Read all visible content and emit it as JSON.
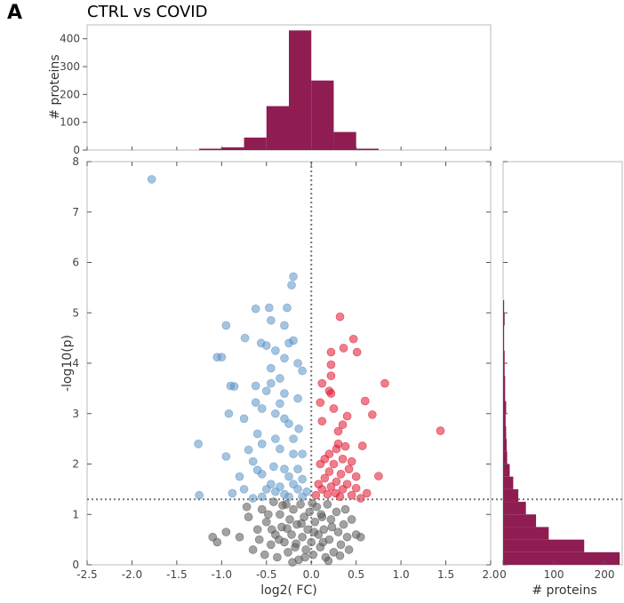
{
  "panel_label": "A",
  "colors": {
    "histogram": "#8f1d52",
    "down": "#5b93c4",
    "up": "#e0142c",
    "ns": "#555555",
    "threshold_line": "#777777",
    "axes": "#bbbbbb"
  },
  "chart_data": [
    {
      "type": "bar",
      "role": "top-marginal-histogram",
      "title": "CTRL vs COVID",
      "xlabel": "",
      "ylabel": "# proteins",
      "xlim": [
        -2.5,
        2.0
      ],
      "ylim": [
        0,
        450
      ],
      "yticks": [
        0,
        100,
        200,
        300,
        400
      ],
      "bin_edges": [
        -1.25,
        -1.0,
        -0.75,
        -0.5,
        -0.25,
        0.0,
        0.25,
        0.5,
        0.75
      ],
      "values": [
        5,
        10,
        45,
        158,
        430,
        250,
        65,
        5
      ]
    },
    {
      "type": "scatter",
      "role": "volcano-plot",
      "xlabel": "log2( FC)",
      "ylabel": "-log10(p)",
      "xlim": [
        -2.5,
        2.0
      ],
      "ylim": [
        0,
        8
      ],
      "xticks": [
        "-2.5",
        "-2.0",
        "-1.5",
        "-1.0",
        "-0.5",
        "0.0",
        "0.5",
        "1.0",
        "1.5",
        "2.0"
      ],
      "yticks": [
        "0",
        "1",
        "2",
        "3",
        "4",
        "5",
        "6",
        "7",
        "8"
      ],
      "thresholds": {
        "x": 0.0,
        "y": 1.3
      },
      "series": [
        {
          "group": "down",
          "points": [
            [
              -1.78,
              7.65
            ],
            [
              -0.2,
              5.72
            ],
            [
              -0.22,
              5.55
            ],
            [
              -0.47,
              5.1
            ],
            [
              -0.62,
              5.08
            ],
            [
              -0.27,
              5.1
            ],
            [
              -0.45,
              4.85
            ],
            [
              -0.95,
              4.75
            ],
            [
              -0.3,
              4.75
            ],
            [
              -0.74,
              4.5
            ],
            [
              -0.56,
              4.4
            ],
            [
              -0.5,
              4.35
            ],
            [
              -0.2,
              4.45
            ],
            [
              -0.4,
              4.25
            ],
            [
              -1.05,
              4.12
            ],
            [
              -1.0,
              4.12
            ],
            [
              -0.25,
              4.4
            ],
            [
              -0.3,
              4.1
            ],
            [
              -0.15,
              4.0
            ],
            [
              -0.45,
              3.9
            ],
            [
              -0.35,
              3.7
            ],
            [
              -0.1,
              3.85
            ],
            [
              -0.9,
              3.55
            ],
            [
              -0.86,
              3.54
            ],
            [
              -0.62,
              3.55
            ],
            [
              -0.45,
              3.6
            ],
            [
              -0.5,
              3.45
            ],
            [
              -0.3,
              3.4
            ],
            [
              -0.15,
              3.3
            ],
            [
              -0.35,
              3.2
            ],
            [
              -0.62,
              3.22
            ],
            [
              -0.55,
              3.1
            ],
            [
              -0.92,
              3.0
            ],
            [
              -0.4,
              3.0
            ],
            [
              -0.3,
              2.9
            ],
            [
              -0.25,
              2.8
            ],
            [
              -0.14,
              2.7
            ],
            [
              -0.75,
              2.9
            ],
            [
              -0.6,
              2.6
            ],
            [
              -0.4,
              2.5
            ],
            [
              -0.2,
              2.5
            ],
            [
              -0.55,
              2.4
            ],
            [
              -1.26,
              2.4
            ],
            [
              -0.7,
              2.28
            ],
            [
              -0.35,
              2.3
            ],
            [
              -0.1,
              2.2
            ],
            [
              -0.95,
              2.15
            ],
            [
              -0.2,
              2.2
            ],
            [
              -0.65,
              2.05
            ],
            [
              -0.42,
              1.95
            ],
            [
              -0.3,
              1.9
            ],
            [
              -0.15,
              1.9
            ],
            [
              -0.55,
              1.8
            ],
            [
              -0.6,
              1.88
            ],
            [
              -0.8,
              1.75
            ],
            [
              -0.25,
              1.75
            ],
            [
              -0.1,
              1.7
            ],
            [
              -0.45,
              1.6
            ],
            [
              -0.35,
              1.55
            ],
            [
              -0.2,
              1.6
            ],
            [
              -0.5,
              1.5
            ],
            [
              -0.4,
              1.45
            ],
            [
              -0.3,
              1.4
            ],
            [
              -0.15,
              1.5
            ],
            [
              -0.05,
              1.45
            ],
            [
              -0.75,
              1.5
            ],
            [
              -0.88,
              1.42
            ],
            [
              -1.25,
              1.38
            ],
            [
              -0.55,
              1.35
            ],
            [
              -0.25,
              1.35
            ],
            [
              -0.1,
              1.35
            ],
            [
              -0.65,
              1.32
            ]
          ]
        },
        {
          "group": "up",
          "points": [
            [
              0.32,
              4.92
            ],
            [
              0.47,
              4.48
            ],
            [
              0.36,
              4.3
            ],
            [
              0.51,
              4.22
            ],
            [
              0.22,
              4.22
            ],
            [
              0.22,
              3.97
            ],
            [
              0.22,
              3.75
            ],
            [
              0.12,
              3.6
            ],
            [
              0.82,
              3.6
            ],
            [
              0.2,
              3.45
            ],
            [
              0.22,
              3.4
            ],
            [
              0.6,
              3.25
            ],
            [
              0.1,
              3.22
            ],
            [
              0.25,
              3.1
            ],
            [
              0.68,
              2.98
            ],
            [
              0.4,
              2.95
            ],
            [
              0.35,
              2.78
            ],
            [
              0.3,
              2.65
            ],
            [
              1.44,
              2.66
            ],
            [
              0.12,
              2.85
            ],
            [
              0.3,
              2.4
            ],
            [
              0.57,
              2.36
            ],
            [
              0.38,
              2.35
            ],
            [
              0.28,
              2.3
            ],
            [
              0.2,
              2.2
            ],
            [
              0.15,
              2.1
            ],
            [
              0.35,
              2.1
            ],
            [
              0.45,
              2.05
            ],
            [
              0.25,
              2.0
            ],
            [
              0.1,
              2.0
            ],
            [
              0.42,
              1.9
            ],
            [
              0.2,
              1.85
            ],
            [
              0.33,
              1.8
            ],
            [
              0.5,
              1.75
            ],
            [
              0.75,
              1.76
            ],
            [
              0.15,
              1.72
            ],
            [
              0.28,
              1.65
            ],
            [
              0.4,
              1.6
            ],
            [
              0.08,
              1.6
            ],
            [
              0.22,
              1.55
            ],
            [
              0.35,
              1.5
            ],
            [
              0.5,
              1.52
            ],
            [
              0.12,
              1.5
            ],
            [
              0.62,
              1.42
            ],
            [
              0.27,
              1.42
            ],
            [
              0.18,
              1.4
            ],
            [
              0.45,
              1.38
            ],
            [
              0.05,
              1.38
            ],
            [
              0.32,
              1.35
            ],
            [
              0.55,
              1.32
            ]
          ]
        },
        {
          "group": "ns",
          "points": [
            [
              -1.1,
              0.55
            ],
            [
              -1.05,
              0.45
            ],
            [
              -0.95,
              0.65
            ],
            [
              -0.7,
              0.95
            ],
            [
              -0.8,
              0.55
            ],
            [
              -0.72,
              1.15
            ],
            [
              -0.65,
              0.3
            ],
            [
              -0.6,
              0.7
            ],
            [
              -0.55,
              1.1
            ],
            [
              -0.5,
              0.85
            ],
            [
              -0.45,
              0.4
            ],
            [
              -0.42,
              1.25
            ],
            [
              -0.4,
              0.6
            ],
            [
              -0.38,
              0.15
            ],
            [
              -0.35,
              1.0
            ],
            [
              -0.33,
              0.75
            ],
            [
              -0.3,
              0.45
            ],
            [
              -0.28,
              1.2
            ],
            [
              -0.26,
              0.25
            ],
            [
              -0.24,
              0.9
            ],
            [
              -0.22,
              0.6
            ],
            [
              -0.2,
              1.1
            ],
            [
              -0.18,
              0.35
            ],
            [
              -0.16,
              0.8
            ],
            [
              -0.14,
              0.1
            ],
            [
              -0.12,
              1.2
            ],
            [
              -0.1,
              0.55
            ],
            [
              -0.08,
              0.95
            ],
            [
              -0.06,
              0.3
            ],
            [
              -0.04,
              0.7
            ],
            [
              -0.02,
              1.05
            ],
            [
              0.0,
              0.45
            ],
            [
              0.02,
              0.2
            ],
            [
              0.04,
              0.85
            ],
            [
              0.06,
              1.15
            ],
            [
              0.08,
              0.6
            ],
            [
              0.1,
              0.35
            ],
            [
              0.12,
              0.95
            ],
            [
              0.14,
              0.7
            ],
            [
              0.16,
              0.15
            ],
            [
              0.18,
              1.2
            ],
            [
              0.2,
              0.5
            ],
            [
              0.22,
              0.9
            ],
            [
              0.25,
              0.25
            ],
            [
              0.28,
              1.05
            ],
            [
              0.3,
              0.65
            ],
            [
              0.33,
              0.4
            ],
            [
              0.36,
              0.8
            ],
            [
              0.4,
              0.55
            ],
            [
              0.45,
              0.9
            ],
            [
              0.5,
              0.6
            ],
            [
              0.55,
              0.55
            ],
            [
              0.42,
              0.3
            ],
            [
              -0.52,
              0.2
            ],
            [
              -0.58,
              0.5
            ],
            [
              -0.48,
              1.0
            ],
            [
              -0.36,
              0.5
            ],
            [
              -0.27,
              0.72
            ],
            [
              -0.17,
              0.42
            ],
            [
              -0.07,
              0.15
            ],
            [
              0.03,
              0.65
            ],
            [
              0.13,
              0.45
            ],
            [
              0.23,
              0.75
            ],
            [
              0.32,
              0.18
            ],
            [
              0.38,
              1.1
            ],
            [
              -0.44,
              0.7
            ],
            [
              -0.32,
              1.18
            ],
            [
              -0.21,
              0.05
            ],
            [
              -0.11,
              0.82
            ],
            [
              0.01,
              1.22
            ],
            [
              0.11,
              1.0
            ],
            [
              0.19,
              0.08
            ]
          ]
        }
      ]
    },
    {
      "type": "bar",
      "role": "right-marginal-histogram",
      "orientation": "horizontal",
      "xlabel": "# proteins",
      "ylabel": "",
      "xlim": [
        0,
        235
      ],
      "ylim": [
        0,
        8
      ],
      "xticks": [
        "0",
        "100",
        "200"
      ],
      "bin_edges": [
        0,
        0.25,
        0.5,
        0.75,
        1.0,
        1.25,
        1.5,
        1.75,
        2.0,
        2.25,
        2.5,
        2.75,
        3.0,
        3.25,
        3.5,
        3.75,
        4.0,
        4.25,
        4.5,
        4.75,
        5.0,
        5.25
      ],
      "values": [
        230,
        160,
        90,
        65,
        45,
        30,
        20,
        13,
        8,
        7,
        6,
        5,
        6,
        4,
        4,
        3,
        3,
        2,
        2,
        3,
        2
      ]
    }
  ]
}
